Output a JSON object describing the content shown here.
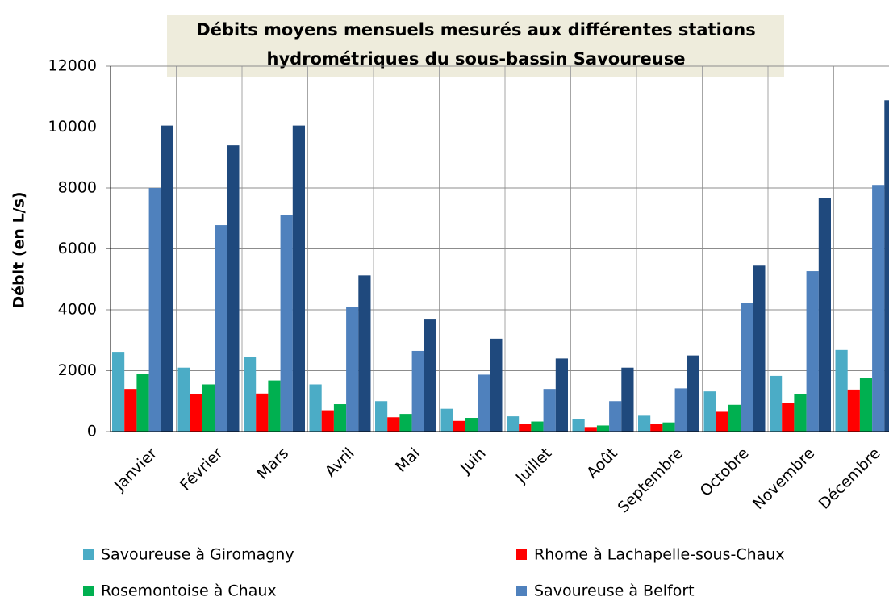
{
  "chart_data": {
    "type": "bar",
    "title": [
      "Débits moyens mensuels mesurés aux différentes stations",
      "hydrométriques du sous-bassin Savoureuse"
    ],
    "ylabel": "Débit (en L/s)",
    "categories": [
      "Janvier",
      "Février",
      "Mars",
      "Avril",
      "Mai",
      "Juin",
      "Juillet",
      "Août",
      "Septembre",
      "Octobre",
      "Novembre",
      "Décembre"
    ],
    "series": [
      {
        "name": "Savoureuse à Giromagny",
        "color": "#4bacc6",
        "values": [
          2620,
          2100,
          2450,
          1550,
          1000,
          750,
          500,
          400,
          520,
          1320,
          1830,
          2680
        ]
      },
      {
        "name": "Rhome à Lachapelle-sous-Chaux",
        "color": "#ff0000",
        "values": [
          1400,
          1230,
          1250,
          700,
          470,
          350,
          250,
          150,
          250,
          650,
          950,
          1380
        ]
      },
      {
        "name": "Rosemontoise à Chaux",
        "color": "#00b050",
        "values": [
          1900,
          1550,
          1680,
          900,
          580,
          450,
          330,
          200,
          300,
          880,
          1220,
          1760
        ]
      },
      {
        "name": "Savoureuse à Belfort",
        "color": "#4f81bd",
        "values": [
          8000,
          6780,
          7100,
          4100,
          2650,
          1870,
          1400,
          1000,
          1420,
          4220,
          5270,
          8100
        ]
      },
      {
        "color": "#1f497d",
        "values": [
          10050,
          9400,
          10050,
          5130,
          3680,
          3050,
          2400,
          2100,
          2500,
          5450,
          7680,
          10880
        ]
      }
    ],
    "ylim": [
      0,
      12000
    ],
    "yticks": [
      0,
      2000,
      4000,
      6000,
      8000,
      10000,
      12000
    ],
    "grid": true
  }
}
